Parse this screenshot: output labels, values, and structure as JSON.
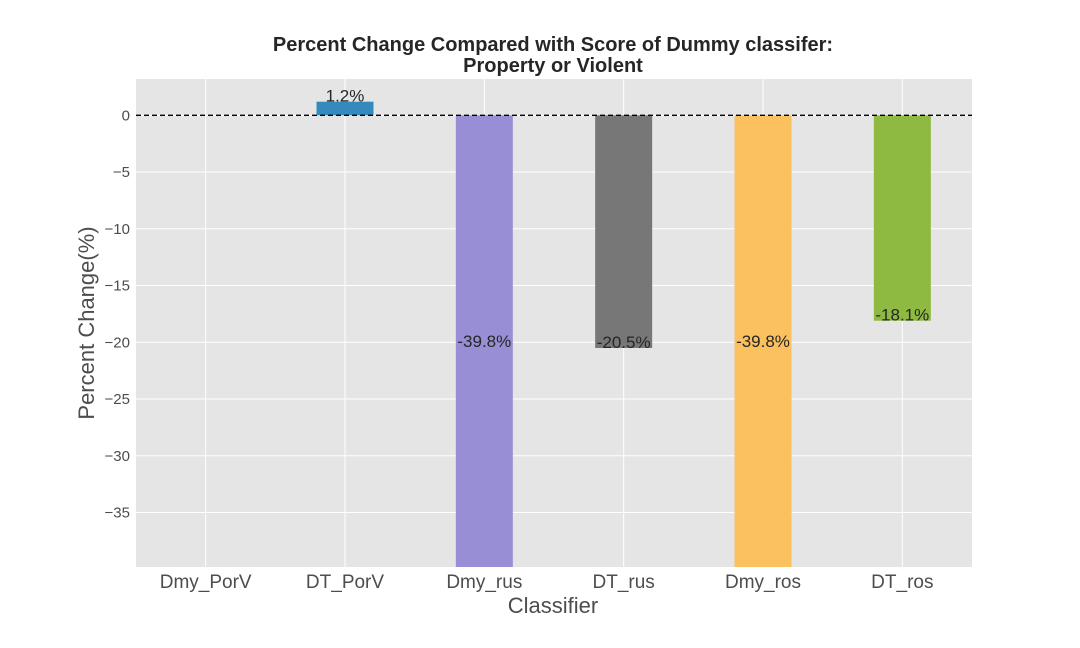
{
  "chart_data": {
    "type": "bar",
    "title": "Percent Change Compared with Score of Dummy classifer:",
    "subtitle": "Property or Violent",
    "xlabel": "Classifier",
    "ylabel": "Percent Change(%)",
    "categories": [
      "Dmy_PorV",
      "DT_PorV",
      "Dmy_rus",
      "DT_rus",
      "Dmy_ros",
      "DT_ros"
    ],
    "values": [
      0,
      1.2,
      -39.8,
      -20.5,
      -39.8,
      -18.1
    ],
    "data_labels": [
      "",
      "1.2%",
      "-39.8%",
      "-20.5%",
      "-39.8%",
      "-18.1%"
    ],
    "colors": [
      "#348abd",
      "#348abd",
      "#988ed5",
      "#777777",
      "#fbc15e",
      "#8eba42"
    ],
    "ylim": [
      -39.8,
      3.2
    ],
    "yticks": [
      0,
      -5,
      -10,
      -15,
      -20,
      -25,
      -30,
      -35
    ],
    "ytick_labels": [
      "0",
      "−5",
      "−10",
      "−15",
      "−20",
      "−25",
      "−30",
      "−35"
    ],
    "reference_line": 0,
    "grid": true,
    "background": "#e5e5e5",
    "grid_color": "#ffffff"
  }
}
